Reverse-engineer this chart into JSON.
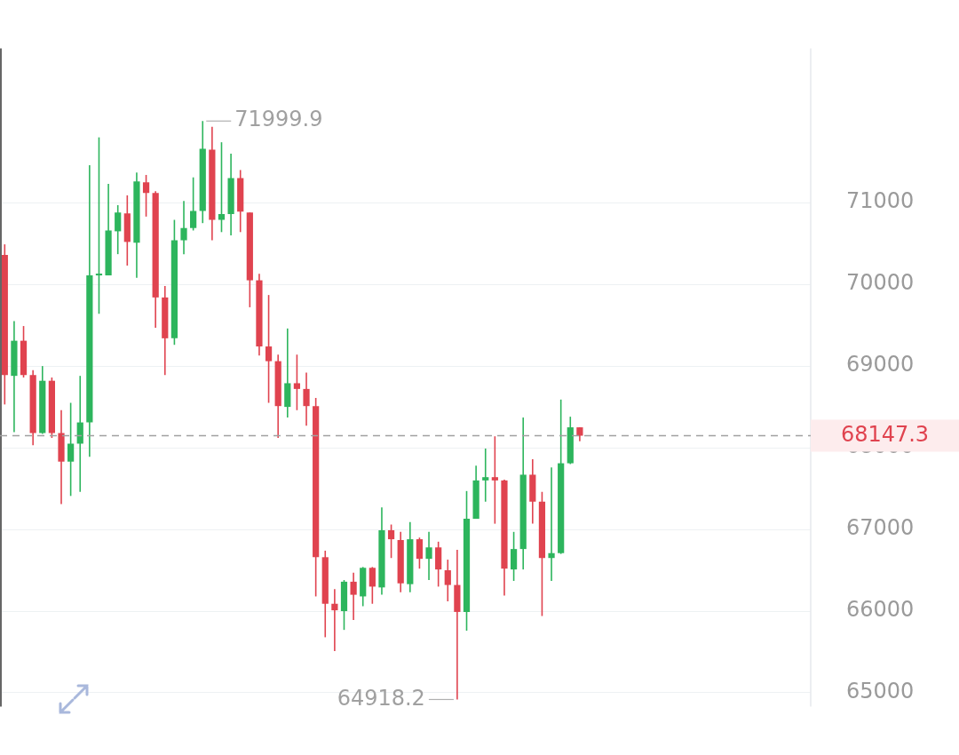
{
  "chart_data": {
    "type": "candlestick",
    "categories": [
      null,
      null,
      null,
      null,
      null,
      null,
      null,
      null,
      null,
      null,
      null,
      null,
      null,
      null,
      null,
      null,
      null,
      null,
      null,
      null,
      null,
      null,
      null,
      null,
      null,
      null,
      null,
      null,
      null,
      null,
      null,
      null,
      null,
      null,
      null,
      null,
      null,
      null,
      null,
      null,
      null,
      null,
      null,
      null,
      null,
      null,
      null,
      null,
      null,
      null,
      null,
      null,
      null,
      null,
      null,
      null,
      null,
      null,
      null,
      null,
      null,
      null,
      null,
      null,
      null,
      null,
      null,
      null,
      null,
      null,
      null,
      null,
      null,
      null,
      null,
      null,
      null,
      null,
      null,
      null,
      null,
      null,
      null,
      null,
      null,
      null
    ],
    "ohlc": [
      [
        70360,
        70490,
        68530,
        68890
      ],
      [
        68880,
        69550,
        68190,
        69310
      ],
      [
        69310,
        69490,
        68860,
        68890
      ],
      [
        68890,
        68950,
        68030,
        68180
      ],
      [
        68180,
        69000,
        68170,
        68820
      ],
      [
        68820,
        68860,
        68120,
        68180
      ],
      [
        68180,
        68460,
        67310,
        67830
      ],
      [
        67830,
        68550,
        67410,
        68050
      ],
      [
        68050,
        68880,
        67460,
        68310
      ],
      [
        68310,
        71460,
        67890,
        70110
      ],
      [
        70110,
        71800,
        69640,
        70120
      ],
      [
        70110,
        71230,
        70110,
        70660
      ],
      [
        70650,
        70970,
        70370,
        70880
      ],
      [
        70870,
        71090,
        70230,
        70520
      ],
      [
        70510,
        71370,
        70080,
        71260
      ],
      [
        71250,
        71340,
        70830,
        71120
      ],
      [
        71120,
        71140,
        69470,
        69840
      ],
      [
        69840,
        69980,
        68890,
        69340
      ],
      [
        69340,
        70790,
        69260,
        70540
      ],
      [
        70540,
        71020,
        70370,
        70690
      ],
      [
        70690,
        71310,
        70660,
        70900
      ],
      [
        70900,
        71999.9,
        70750,
        71660
      ],
      [
        71650,
        71930,
        70540,
        70790
      ],
      [
        70790,
        71740,
        70640,
        70860
      ],
      [
        70860,
        71600,
        70600,
        71300
      ],
      [
        71300,
        71400,
        70640,
        70890
      ],
      [
        70880,
        70880,
        69720,
        70050
      ],
      [
        70050,
        70130,
        69130,
        69240
      ],
      [
        69240,
        69870,
        68550,
        69060
      ],
      [
        69060,
        69140,
        68120,
        68510
      ],
      [
        68500,
        69460,
        68370,
        68790
      ],
      [
        68790,
        69140,
        68460,
        68720
      ],
      [
        68720,
        68920,
        68270,
        68510
      ],
      [
        68510,
        68610,
        66180,
        66660
      ],
      [
        66660,
        66740,
        65680,
        66090
      ],
      [
        66090,
        66270,
        65510,
        66010
      ],
      [
        66000,
        66380,
        65770,
        66360
      ],
      [
        66360,
        66470,
        65890,
        66200
      ],
      [
        66180,
        66540,
        66060,
        66530
      ],
      [
        66530,
        66540,
        66090,
        66300
      ],
      [
        66290,
        67270,
        66200,
        66990
      ],
      [
        66990,
        67060,
        66650,
        66880
      ],
      [
        66870,
        66970,
        66230,
        66340
      ],
      [
        66330,
        67090,
        66230,
        66880
      ],
      [
        66880,
        66900,
        66520,
        66640
      ],
      [
        66640,
        66970,
        66380,
        66780
      ],
      [
        66780,
        66850,
        66300,
        66510
      ],
      [
        66500,
        66630,
        66120,
        66320
      ],
      [
        66320,
        66750,
        64918.2,
        65990
      ],
      [
        65990,
        67470,
        65760,
        67130
      ],
      [
        67130,
        67780,
        67130,
        67600
      ],
      [
        67600,
        67990,
        67340,
        67640
      ],
      [
        67640,
        68140,
        67070,
        67600
      ],
      [
        67600,
        67610,
        66190,
        66520
      ],
      [
        66510,
        66970,
        66370,
        66760
      ],
      [
        66760,
        68370,
        66510,
        67670
      ],
      [
        67670,
        67860,
        67070,
        67340
      ],
      [
        67340,
        67460,
        65940,
        66650
      ],
      [
        66650,
        67760,
        66370,
        66710
      ],
      [
        66710,
        68590,
        66700,
        67810
      ],
      [
        67810,
        68380,
        67800,
        68250
      ],
      [
        68250,
        68250,
        68080,
        68147.3
      ],
      null,
      null,
      null,
      null,
      null,
      null,
      null,
      null,
      null,
      null,
      null,
      null,
      null,
      null,
      null,
      null,
      null,
      null,
      null,
      null,
      null,
      null,
      null,
      null
    ],
    "colors": [
      "#e0434f",
      "#2db55d",
      "#e0434f",
      "#e0434f",
      "#2db55d",
      "#e0434f",
      "#e0434f",
      "#2db55d",
      "#2db55d",
      "#2db55d",
      "#2db55d",
      "#2db55d",
      "#2db55d",
      "#e0434f",
      "#2db55d",
      "#e0434f",
      "#e0434f",
      "#e0434f",
      "#2db55d",
      "#2db55d",
      "#2db55d",
      "#2db55d",
      "#e0434f",
      "#2db55d",
      "#2db55d",
      "#e0434f",
      "#e0434f",
      "#e0434f",
      "#e0434f",
      "#e0434f",
      "#2db55d",
      "#e0434f",
      "#e0434f",
      "#e0434f",
      "#e0434f",
      "#e0434f",
      "#2db55d",
      "#e0434f",
      "#2db55d",
      "#e0434f",
      "#2db55d",
      "#e0434f",
      "#e0434f",
      "#2db55d",
      "#e0434f",
      "#2db55d",
      "#e0434f",
      "#e0434f",
      "#e0434f",
      "#2db55d",
      "#2db55d",
      "#2db55d",
      "#e0434f",
      "#e0434f",
      "#2db55d",
      "#2db55d",
      "#e0434f",
      "#e0434f",
      "#2db55d",
      "#2db55d",
      "#2db55d",
      "#e0434f",
      null,
      null,
      null,
      null,
      null,
      null,
      null,
      null,
      null,
      null,
      null,
      null,
      null,
      null,
      null,
      null,
      null,
      null,
      null,
      null,
      null,
      null,
      null,
      null
    ],
    "ylim": [
      64830,
      72890
    ],
    "yticks": [
      65000,
      66000,
      67000,
      68000,
      69000,
      70000,
      71000
    ],
    "grid": "y",
    "ref_lines": [
      {
        "axis": "y",
        "value": 68147.3,
        "label": "68147.3",
        "color": "#a0a0a0",
        "line_style": "dashed"
      }
    ],
    "annotations": [
      "71999.9",
      "64918.2"
    ]
  }
}
